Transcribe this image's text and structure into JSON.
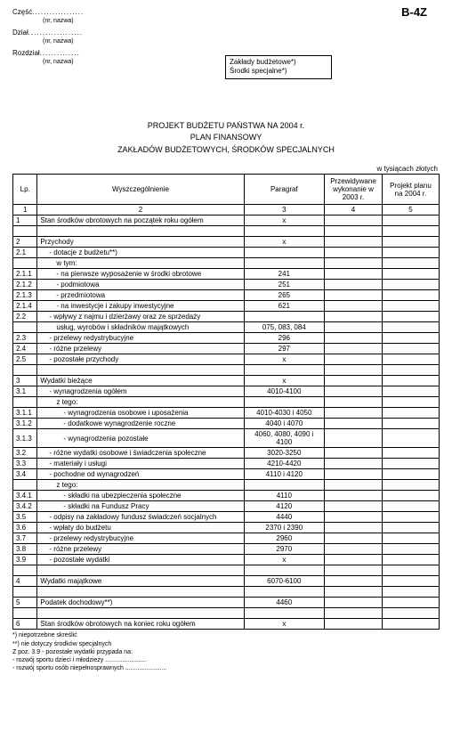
{
  "formCode": "B-4Z",
  "header": {
    "fields": [
      {
        "label": "Część",
        "sub": "(nr, nazwa)"
      },
      {
        "label": "Dział",
        "sub": "(nr, nazwa)"
      },
      {
        "label": "Rozdział",
        "sub": "(nr, nazwa)"
      }
    ],
    "box": {
      "line1": "Zakłady budżetowe*)",
      "line2": "Środki specjalne*)"
    }
  },
  "title": {
    "l1": "PROJEKT BUDŻETU PAŃSTWA NA 2004 r.",
    "l2": "PLAN FINANSOWY",
    "l3": "ZAKŁADÓW BUDŻETOWYCH, ŚRODKÓW SPECJALNYCH"
  },
  "unit": "w tysiącach złotych",
  "columns": {
    "lp": "Lp.",
    "wy": "Wyszczególnienie",
    "par": "Paragraf",
    "prz": "Przewidywane wykonanie w 2003 r.",
    "proj": "Projekt planu na 2004 r."
  },
  "colnums": {
    "c1": "1",
    "c2": "2",
    "c3": "3",
    "c4": "4",
    "c5": "5"
  },
  "rows": [
    {
      "lp": "1",
      "wy": "Stan środków obrotowych na początek roku ogółem",
      "par": "x",
      "ind": 0
    },
    {
      "lp": "",
      "wy": "",
      "par": "",
      "ind": 0
    },
    {
      "lp": "2",
      "wy": "Przychody",
      "par": "x",
      "ind": 0
    },
    {
      "lp": "2.1",
      "wy": "- dotacje z budżetu**)",
      "par": "",
      "ind": 1
    },
    {
      "lp": "",
      "wy": "w tym:",
      "par": "",
      "ind": 2
    },
    {
      "lp": "2.1.1",
      "wy": "- na pierwsze wyposażenie w środki obrotowe",
      "par": "241",
      "ind": 2
    },
    {
      "lp": "2.1.2",
      "wy": "- podmiotowa",
      "par": "251",
      "ind": 2
    },
    {
      "lp": "2.1.3",
      "wy": "- przedmiotowa",
      "par": "265",
      "ind": 2
    },
    {
      "lp": "2.1.4",
      "wy": "- na inwestycje i zakupy inwestycyjne",
      "par": "621",
      "ind": 2
    },
    {
      "lp": "2.2",
      "wy": "- wpływy z najmu i dzierżawy oraz ze sprzedaży",
      "par": "",
      "ind": 1
    },
    {
      "lp": "",
      "wy": "usług, wyrobów i składników majątkowych",
      "par": "075, 083, 084",
      "ind": 2
    },
    {
      "lp": "2.3",
      "wy": "- przelewy redystrybucyjne",
      "par": "296",
      "ind": 1
    },
    {
      "lp": "2.4",
      "wy": "- różne przelewy",
      "par": "297",
      "ind": 1
    },
    {
      "lp": "2.5",
      "wy": "- pozostałe przychody",
      "par": "x",
      "ind": 1
    },
    {
      "lp": "",
      "wy": "",
      "par": "",
      "ind": 0
    },
    {
      "lp": "3",
      "wy": "Wydatki bieżące",
      "par": "x",
      "ind": 0
    },
    {
      "lp": "3.1",
      "wy": "- wynagrodzenia ogółem",
      "par": "4010-4100",
      "ind": 1
    },
    {
      "lp": "",
      "wy": "z tego:",
      "par": "",
      "ind": 2
    },
    {
      "lp": "3.1.1",
      "wy": "- wynagrodzenia osobowe i uposażenia",
      "par": "4010-4030 i 4050",
      "ind": 3
    },
    {
      "lp": "3.1.2",
      "wy": "- dodatkowe wynagrodzenie roczne",
      "par": "4040 i 4070",
      "ind": 3
    },
    {
      "lp": "3.1.3",
      "wy": "- wynagrodzenia pozostałe",
      "par": "4060, 4080, 4090 i 4100",
      "ind": 3
    },
    {
      "lp": "3.2",
      "wy": "- różne wydatki osobowe i świadczenia społeczne",
      "par": "3020-3250",
      "ind": 1
    },
    {
      "lp": "3.3",
      "wy": "- materiały i usługi",
      "par": "4210-4420",
      "ind": 1
    },
    {
      "lp": "3.4",
      "wy": "- pochodne od wynagrodzeń",
      "par": "4110 i 4120",
      "ind": 1
    },
    {
      "lp": "",
      "wy": "z tego:",
      "par": "",
      "ind": 2
    },
    {
      "lp": "3.4.1",
      "wy": "- składki na ubezpieczenia społeczne",
      "par": "4110",
      "ind": 3
    },
    {
      "lp": "3.4.2",
      "wy": "- składki na Fundusz Pracy",
      "par": "4120",
      "ind": 3
    },
    {
      "lp": "3.5",
      "wy": "- odpisy na zakładowy fundusz świadczeń socjalnych",
      "par": "4440",
      "ind": 1
    },
    {
      "lp": "3.6",
      "wy": "- wpłaty do budżetu",
      "par": "2370 i 2390",
      "ind": 1
    },
    {
      "lp": "3.7",
      "wy": "- przelewy redystrybucyjne",
      "par": "2960",
      "ind": 1
    },
    {
      "lp": "3.8",
      "wy": "- różne przelewy",
      "par": "2970",
      "ind": 1
    },
    {
      "lp": "3.9",
      "wy": "- pozostałe wydatki",
      "par": "x",
      "ind": 1
    },
    {
      "lp": "",
      "wy": "",
      "par": "",
      "ind": 0
    },
    {
      "lp": "4",
      "wy": "Wydatki majątkowe",
      "par": "6070-6100",
      "ind": 0
    },
    {
      "lp": "",
      "wy": "",
      "par": "",
      "ind": 0
    },
    {
      "lp": "5",
      "wy": "Podatek dochodowy**)",
      "par": "4460",
      "ind": 0
    },
    {
      "lp": "",
      "wy": "",
      "par": "",
      "ind": 0
    },
    {
      "lp": "6",
      "wy": "Stan środków obrotowych na koniec roku ogółem",
      "par": "x",
      "ind": 0
    }
  ],
  "footnotes": {
    "f1": "*) niepotrzebne skreślić",
    "f2": "**) nie dotyczy środków specjalnych",
    "f3": "Z poz. 3.9 - pozostałe wydatki przypada na:",
    "f4": "- rozwój sportu dzieci i młodzieży ........................",
    "f5": "- rozwój sportu osób niepełnosprawnych ........................"
  }
}
